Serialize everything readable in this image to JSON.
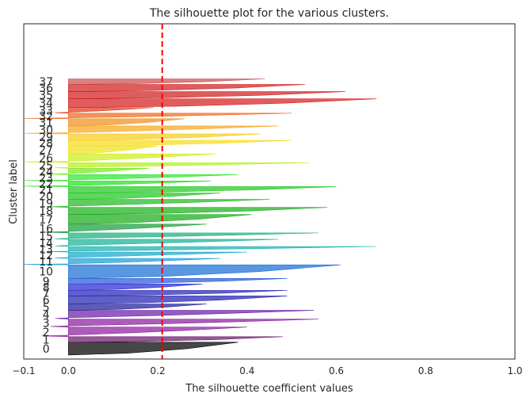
{
  "chart_data": {
    "type": "silhouette",
    "title": "The silhouette plot for the various clusters.",
    "xlabel": "The silhouette coefficient values",
    "ylabel": "Cluster label",
    "xlim": [
      -0.1,
      1.0
    ],
    "ylim": [
      0,
      840
    ],
    "xticks": [
      -0.1,
      0.0,
      0.2,
      0.4,
      0.6,
      0.8,
      1.0
    ],
    "xtick_labels": [
      "−0.1",
      "0.0",
      "0.2",
      "0.4",
      "0.6",
      "0.8",
      "1.0"
    ],
    "average_silhouette": 0.21,
    "average_line_color": "#ff0000",
    "grid": false,
    "clusters": [
      {
        "label": "0",
        "y_start": 10,
        "y_end": 42,
        "min": 0.0,
        "max": 0.38,
        "color": "#000000"
      },
      {
        "label": "1",
        "y_start": 42,
        "y_end": 56,
        "min": 0.0,
        "max": 0.48,
        "color": "#6b1a6b"
      },
      {
        "label": "2",
        "y_start": 56,
        "y_end": 80,
        "min": -0.06,
        "max": 0.4,
        "color": "#8e1e9e"
      },
      {
        "label": "3",
        "y_start": 80,
        "y_end": 100,
        "min": -0.04,
        "max": 0.56,
        "color": "#8a1f9c"
      },
      {
        "label": "4",
        "y_start": 100,
        "y_end": 122,
        "min": -0.03,
        "max": 0.55,
        "color": "#6a1fa8"
      },
      {
        "label": "5",
        "y_start": 122,
        "y_end": 138,
        "min": 0.0,
        "max": 0.31,
        "color": "#1f1f9e"
      },
      {
        "label": "6",
        "y_start": 138,
        "y_end": 158,
        "min": 0.0,
        "max": 0.49,
        "color": "#2222b2"
      },
      {
        "label": "7",
        "y_start": 158,
        "y_end": 172,
        "min": 0.0,
        "max": 0.49,
        "color": "#2424b8"
      },
      {
        "label": "8",
        "y_start": 172,
        "y_end": 188,
        "min": 0.0,
        "max": 0.3,
        "color": "#2a2ad6"
      },
      {
        "label": "9",
        "y_start": 188,
        "y_end": 202,
        "min": 0.0,
        "max": 0.49,
        "color": "#2a5ad6"
      },
      {
        "label": "10",
        "y_start": 202,
        "y_end": 236,
        "min": 0.0,
        "max": 0.61,
        "color": "#1a6fd6"
      },
      {
        "label": "11",
        "y_start": 236,
        "y_end": 252,
        "min": -0.1,
        "max": 0.34,
        "color": "#1a9fd6"
      },
      {
        "label": "12",
        "y_start": 252,
        "y_end": 268,
        "min": -0.03,
        "max": 0.4,
        "color": "#1aa8c8"
      },
      {
        "label": "13",
        "y_start": 268,
        "y_end": 282,
        "min": -0.04,
        "max": 0.69,
        "color": "#1ab0b0"
      },
      {
        "label": "14",
        "y_start": 282,
        "y_end": 300,
        "min": -0.03,
        "max": 0.47,
        "color": "#1ab09a"
      },
      {
        "label": "15",
        "y_start": 300,
        "y_end": 316,
        "min": -0.03,
        "max": 0.56,
        "color": "#1aae80"
      },
      {
        "label": "16",
        "y_start": 316,
        "y_end": 338,
        "min": -0.06,
        "max": 0.31,
        "color": "#1a9e3a"
      },
      {
        "label": "17",
        "y_start": 338,
        "y_end": 362,
        "min": 0.0,
        "max": 0.41,
        "color": "#1aaa1a"
      },
      {
        "label": "18",
        "y_start": 362,
        "y_end": 380,
        "min": 0.0,
        "max": 0.58,
        "color": "#1ab01a"
      },
      {
        "label": "19",
        "y_start": 380,
        "y_end": 400,
        "min": -0.04,
        "max": 0.45,
        "color": "#22b822"
      },
      {
        "label": "20",
        "y_start": 400,
        "y_end": 416,
        "min": 0.0,
        "max": 0.34,
        "color": "#1ec81e"
      },
      {
        "label": "21",
        "y_start": 416,
        "y_end": 432,
        "min": 0.0,
        "max": 0.6,
        "color": "#24c824"
      },
      {
        "label": "22",
        "y_start": 432,
        "y_end": 446,
        "min": -0.1,
        "max": 0.32,
        "color": "#22e022"
      },
      {
        "label": "23",
        "y_start": 446,
        "y_end": 462,
        "min": -0.1,
        "max": 0.38,
        "color": "#2ee82e"
      },
      {
        "label": "24",
        "y_start": 462,
        "y_end": 478,
        "min": -0.06,
        "max": 0.18,
        "color": "#7ae81e"
      },
      {
        "label": "25",
        "y_start": 478,
        "y_end": 492,
        "min": -0.03,
        "max": 0.54,
        "color": "#b4f01e"
      },
      {
        "label": "26",
        "y_start": 492,
        "y_end": 514,
        "min": -0.1,
        "max": 0.33,
        "color": "#ccee1e"
      },
      {
        "label": "27",
        "y_start": 514,
        "y_end": 534,
        "min": 0.0,
        "max": 0.2,
        "color": "#f0e01e"
      },
      {
        "label": "28",
        "y_start": 534,
        "y_end": 548,
        "min": 0.0,
        "max": 0.5,
        "color": "#f8dc1e"
      },
      {
        "label": "29",
        "y_start": 548,
        "y_end": 564,
        "min": 0.0,
        "max": 0.43,
        "color": "#f8cc1e"
      },
      {
        "label": "30",
        "y_start": 564,
        "y_end": 584,
        "min": -0.1,
        "max": 0.47,
        "color": "#f8a81e"
      },
      {
        "label": "31",
        "y_start": 584,
        "y_end": 602,
        "min": 0.0,
        "max": 0.26,
        "color": "#f0901e"
      },
      {
        "label": "32",
        "y_start": 602,
        "y_end": 616,
        "min": -0.1,
        "max": 0.5,
        "color": "#f06a1e"
      },
      {
        "label": "33",
        "y_start": 616,
        "y_end": 630,
        "min": -0.03,
        "max": 0.19,
        "color": "#e0361e"
      },
      {
        "label": "34",
        "y_start": 630,
        "y_end": 652,
        "min": 0.0,
        "max": 0.69,
        "color": "#d41e1e"
      },
      {
        "label": "35",
        "y_start": 652,
        "y_end": 670,
        "min": 0.0,
        "max": 0.62,
        "color": "#d01e1e"
      },
      {
        "label": "36",
        "y_start": 670,
        "y_end": 688,
        "min": 0.0,
        "max": 0.53,
        "color": "#d21e1e"
      },
      {
        "label": "37",
        "y_start": 688,
        "y_end": 702,
        "min": 0.0,
        "max": 0.44,
        "color": "#c85050"
      }
    ]
  }
}
